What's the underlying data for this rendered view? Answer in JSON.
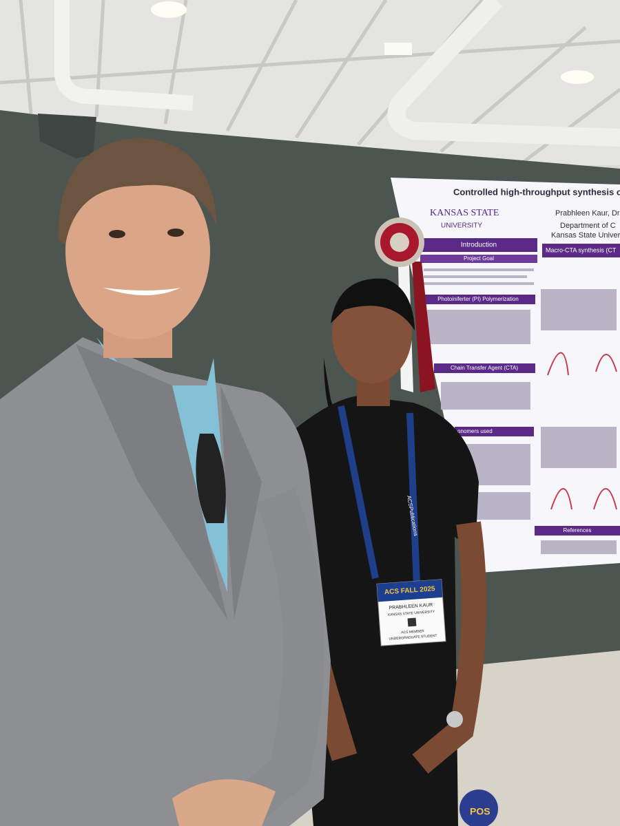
{
  "poster": {
    "title": "Controlled high-throughput synthesis of ABA trib",
    "logo": {
      "line1": "KANSAS STATE",
      "line2": "UNIVERSITY"
    },
    "authors": "Prabhleen Kaur, Dr. Pa",
    "department": "Department of C",
    "institution": "Kansas State University,",
    "sections": [
      "Introduction",
      "Project Goal",
      "Macro-CTA synthesis (CT",
      "Photoiniferter (PI) Polymerization",
      "Chain Transfer Agent (CTA)",
      "onomers used",
      "References"
    ]
  },
  "badge": {
    "event": "ACS FALL 2025",
    "name": "PRABHLEEN KAUR",
    "affiliation": "KANSAS STATE UNIVERSITY",
    "member": "ACS MEMBER",
    "role": "UNDERGRADUATE STUDENT"
  },
  "lanyard": "ACSPublications",
  "floor_sign": "POS"
}
